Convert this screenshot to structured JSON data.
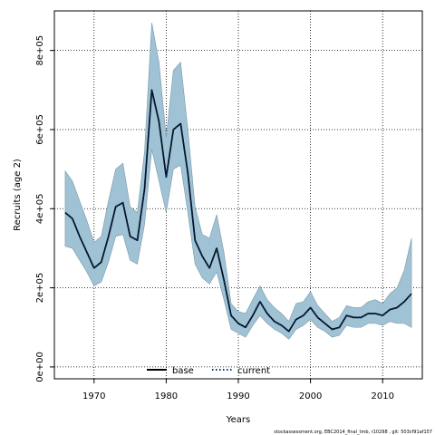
{
  "chart_data": {
    "type": "line",
    "xlabel": "Years",
    "ylabel": "Recruits (age 2)",
    "xlim": [
      1964.5,
      2015.5
    ],
    "ylim": [
      -30000,
      900000
    ],
    "xticks": [
      1970,
      1980,
      1990,
      2000,
      2010
    ],
    "xtick_labels": [
      "1970",
      "1980",
      "1990",
      "2000",
      "2010"
    ],
    "yticks": [
      0,
      200000,
      400000,
      600000,
      800000
    ],
    "ytick_labels": [
      "0e+00",
      "2e+05",
      "4e+05",
      "6e+05",
      "8e+05"
    ],
    "grid": true,
    "legend_position": "bottom-center",
    "x": [
      1966,
      1967,
      1968,
      1969,
      1970,
      1971,
      1972,
      1973,
      1974,
      1975,
      1976,
      1977,
      1978,
      1979,
      1980,
      1981,
      1982,
      1983,
      1984,
      1985,
      1986,
      1987,
      1988,
      1989,
      1990,
      1991,
      1992,
      1993,
      1994,
      1995,
      1996,
      1997,
      1998,
      1999,
      2000,
      2001,
      2002,
      2003,
      2004,
      2005,
      2006,
      2007,
      2008,
      2009,
      2010,
      2011,
      2012,
      2013,
      2014
    ],
    "series": [
      {
        "name": "base",
        "color": "#000000",
        "style": "solid",
        "values": [
          390000,
          375000,
          330000,
          290000,
          250000,
          265000,
          330000,
          405000,
          415000,
          330000,
          320000,
          450000,
          700000,
          620000,
          480000,
          600000,
          615000,
          490000,
          320000,
          280000,
          250000,
          300000,
          220000,
          130000,
          110000,
          100000,
          130000,
          165000,
          135000,
          115000,
          105000,
          90000,
          120000,
          130000,
          150000,
          125000,
          110000,
          95000,
          100000,
          130000,
          125000,
          125000,
          135000,
          135000,
          130000,
          145000,
          150000,
          165000,
          185000
        ]
      },
      {
        "name": "current",
        "color": "#08306b",
        "style": "dotted",
        "values": [
          390000,
          375000,
          330000,
          290000,
          250000,
          265000,
          330000,
          405000,
          415000,
          330000,
          320000,
          450000,
          700000,
          620000,
          480000,
          600000,
          615000,
          490000,
          320000,
          280000,
          250000,
          300000,
          220000,
          130000,
          110000,
          100000,
          130000,
          165000,
          135000,
          115000,
          105000,
          90000,
          120000,
          130000,
          150000,
          125000,
          110000,
          95000,
          100000,
          130000,
          125000,
          125000,
          135000,
          135000,
          130000,
          145000,
          150000,
          165000,
          185000
        ]
      }
    ],
    "interval": {
      "color": "#9fc2d4",
      "lower": [
        305000,
        300000,
        270000,
        240000,
        205000,
        215000,
        265000,
        330000,
        335000,
        270000,
        260000,
        360000,
        550000,
        470000,
        390000,
        500000,
        510000,
        390000,
        260000,
        225000,
        210000,
        240000,
        170000,
        95000,
        85000,
        75000,
        105000,
        130000,
        110000,
        95000,
        85000,
        70000,
        95000,
        105000,
        120000,
        100000,
        90000,
        75000,
        80000,
        105000,
        100000,
        100000,
        110000,
        110000,
        105000,
        115000,
        110000,
        110000,
        100000
      ],
      "upper": [
        495000,
        470000,
        420000,
        370000,
        315000,
        330000,
        420000,
        500000,
        515000,
        405000,
        390000,
        545000,
        870000,
        770000,
        580000,
        750000,
        770000,
        600000,
        405000,
        335000,
        325000,
        385000,
        290000,
        160000,
        140000,
        135000,
        170000,
        205000,
        170000,
        150000,
        135000,
        115000,
        160000,
        165000,
        190000,
        155000,
        135000,
        115000,
        125000,
        155000,
        150000,
        150000,
        165000,
        170000,
        160000,
        185000,
        200000,
        245000,
        325000
      ]
    }
  },
  "legend": {
    "base_label": "base",
    "current_label": "current"
  },
  "footer": {
    "text": "stockassessment.org, EBC2014_final_tmb, r10298 , git: 503cf91af157"
  }
}
